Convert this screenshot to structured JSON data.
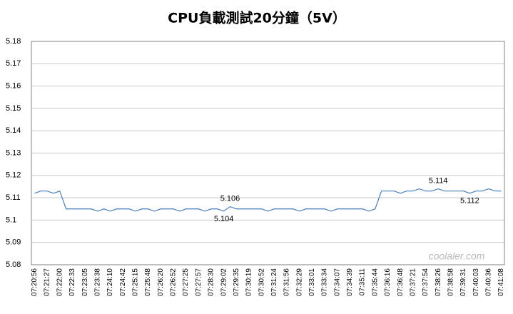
{
  "chart_data": {
    "type": "line",
    "title": "CPU負載測試20分鐘（5V）",
    "watermark": "coolaler.com",
    "categories": [
      "07:20:56",
      null,
      "07:21:27",
      null,
      "07:22:00",
      null,
      "07:22:33",
      null,
      "07:23:05",
      null,
      "07:23:38",
      null,
      "07:24:10",
      null,
      "07:24:42",
      null,
      "07:25:15",
      null,
      "07:25:48",
      null,
      "07:26:20",
      null,
      "07:26:52",
      null,
      "07:27:25",
      null,
      "07:27:57",
      null,
      "07:28:30",
      null,
      "07:29:02",
      null,
      "07:29:35",
      null,
      "07:30:19",
      null,
      "07:30:52",
      null,
      "07:31:24",
      null,
      "07:31:56",
      null,
      "07:32:29",
      null,
      "07:33:01",
      null,
      "07:33:34",
      null,
      "07:34:07",
      null,
      "07:34:39",
      null,
      "07:35:11",
      null,
      "07:35:44",
      null,
      "07:36:16",
      null,
      "07:36:48",
      null,
      "07:37:21",
      null,
      "07:37:54",
      null,
      "07:38:26",
      null,
      "07:38:58",
      null,
      "07:39:31",
      null,
      "07:40:03",
      null,
      "07:40:36",
      null,
      "07:41:08"
    ],
    "series": [
      {
        "name": "5V",
        "color": "#4a7ebb",
        "values": [
          5.112,
          5.113,
          5.113,
          5.112,
          5.113,
          5.105,
          5.105,
          5.105,
          5.105,
          5.105,
          5.104,
          5.105,
          5.104,
          5.105,
          5.105,
          5.105,
          5.104,
          5.105,
          5.105,
          5.104,
          5.105,
          5.105,
          5.105,
          5.104,
          5.105,
          5.105,
          5.105,
          5.104,
          5.105,
          5.105,
          5.104,
          5.106,
          5.105,
          5.105,
          5.105,
          5.105,
          5.105,
          5.104,
          5.105,
          5.105,
          5.105,
          5.105,
          5.104,
          5.105,
          5.105,
          5.105,
          5.105,
          5.104,
          5.105,
          5.105,
          5.105,
          5.105,
          5.105,
          5.104,
          5.105,
          5.113,
          5.113,
          5.113,
          5.112,
          5.113,
          5.113,
          5.114,
          5.113,
          5.113,
          5.114,
          5.113,
          5.113,
          5.113,
          5.113,
          5.112,
          5.113,
          5.113,
          5.114,
          5.113,
          5.113
        ],
        "value_labels": [
          null,
          null,
          null,
          null,
          null,
          null,
          null,
          null,
          null,
          null,
          null,
          null,
          null,
          null,
          null,
          null,
          null,
          null,
          null,
          null,
          null,
          null,
          null,
          null,
          null,
          null,
          null,
          null,
          null,
          null,
          "5.104",
          "5.106",
          null,
          null,
          null,
          null,
          null,
          null,
          null,
          null,
          null,
          null,
          null,
          null,
          null,
          null,
          null,
          null,
          null,
          null,
          null,
          null,
          null,
          null,
          null,
          null,
          null,
          null,
          null,
          null,
          null,
          null,
          null,
          null,
          "5.114",
          null,
          null,
          null,
          null,
          "5.112",
          null,
          null,
          null,
          null,
          null
        ]
      }
    ],
    "ylim": [
      5.08,
      5.18
    ],
    "yticks": [
      5.08,
      5.09,
      5.1,
      5.11,
      5.12,
      5.13,
      5.14,
      5.15,
      5.16,
      5.17,
      5.18
    ],
    "grid": true
  }
}
